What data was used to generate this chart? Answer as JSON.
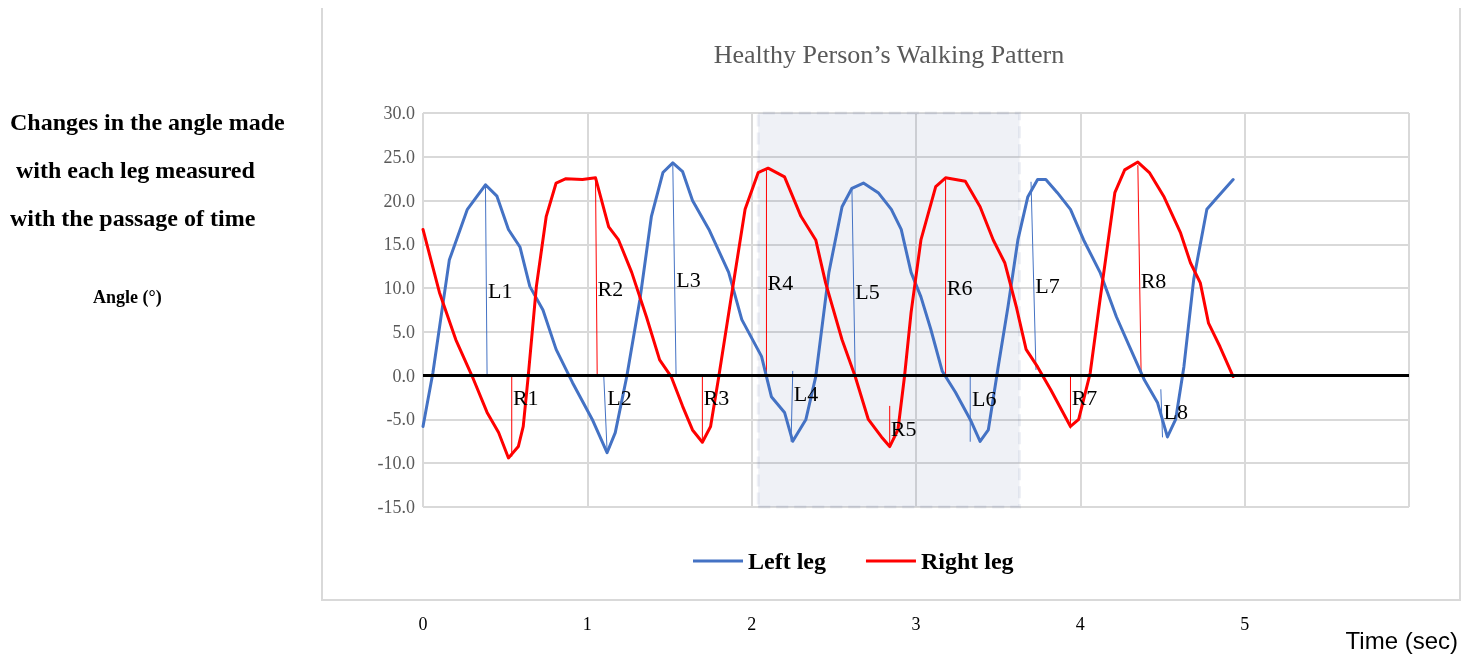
{
  "chart_data": {
    "type": "line",
    "title": "Healthy Person’s Walking Pattern",
    "xlabel": "Time (sec)",
    "xlim": [
      0,
      6
    ],
    "xticks": [
      0,
      1,
      2,
      3,
      4,
      5,
      {
        "value": 6,
        "label": null
      }
    ],
    "ylim": [
      -15,
      30
    ],
    "yticks": [
      {
        "value": -15,
        "label": "-15.0"
      },
      {
        "value": -10,
        "label": "-10.0"
      },
      {
        "value": -5,
        "label": "-5.0"
      },
      {
        "value": 0,
        "label": "0.0"
      },
      {
        "value": 5,
        "label": "5.0"
      },
      {
        "value": 10,
        "label": "10.0"
      },
      {
        "value": 15,
        "label": "15.0"
      },
      {
        "value": 20,
        "label": "20.0"
      },
      {
        "value": 25,
        "label": "25.0"
      },
      {
        "value": 30,
        "label": "30.0"
      }
    ],
    "grid": true,
    "legend": "bottom",
    "marker": "none",
    "line_style": "solid",
    "series": [
      {
        "name": "Left leg",
        "color": "#4472c4",
        "x": [
          0,
          0.06,
          0.16,
          0.27,
          0.38,
          0.45,
          0.52,
          0.59,
          0.65,
          0.73,
          0.81,
          0.91,
          1.03,
          1.12,
          1.17,
          1.24,
          1.32,
          1.39,
          1.46,
          1.52,
          1.58,
          1.64,
          1.74,
          1.86,
          1.94,
          2.06,
          2.12,
          2.2,
          2.25,
          2.33,
          2.39,
          2.47,
          2.55,
          2.61,
          2.68,
          2.77,
          2.85,
          2.91,
          2.97,
          3.03,
          3.09,
          3.16,
          3.24,
          3.33,
          3.39,
          3.44,
          3.5,
          3.56,
          3.62,
          3.68,
          3.74,
          3.79,
          3.86,
          3.94,
          4.02,
          4.12,
          4.22,
          4.3,
          4.39,
          4.47,
          4.53,
          4.58,
          4.63,
          4.69,
          4.77,
          4.83,
          4.93
        ],
        "values": [
          -5.8,
          0.3,
          13.2,
          19,
          21.8,
          20.5,
          16.7,
          14.7,
          10.2,
          7.5,
          3,
          -0.8,
          -5,
          -8.8,
          -6.5,
          -0.1,
          8.7,
          18.2,
          23.2,
          24.3,
          23.3,
          20,
          16.7,
          11.8,
          6.4,
          2.2,
          -2.4,
          -4.2,
          -7.5,
          -5,
          -0.1,
          11.8,
          19.3,
          21.4,
          22,
          20.9,
          19,
          16.7,
          11.8,
          9,
          5.3,
          0.5,
          -1.9,
          -5,
          -7.5,
          -6.2,
          1,
          7.9,
          15.5,
          20.4,
          22.4,
          22.4,
          20.9,
          19,
          15.5,
          11.8,
          6.7,
          3.3,
          -0.5,
          -3.1,
          -7,
          -5,
          1,
          11,
          19,
          20.3,
          22.4
        ]
      },
      {
        "name": "Right leg",
        "color": "#ff0000",
        "x": [
          0,
          0.1,
          0.2,
          0.3,
          0.39,
          0.46,
          0.52,
          0.58,
          0.61,
          0.64,
          0.69,
          0.75,
          0.81,
          0.87,
          0.97,
          1.05,
          1.13,
          1.19,
          1.27,
          1.36,
          1.44,
          1.51,
          1.58,
          1.64,
          1.7,
          1.75,
          1.8,
          1.88,
          1.96,
          2.04,
          2.1,
          2.2,
          2.3,
          2.39,
          2.45,
          2.55,
          2.63,
          2.71,
          2.79,
          2.84,
          2.89,
          2.93,
          2.97,
          3.03,
          3.12,
          3.18,
          3.3,
          3.39,
          3.47,
          3.54,
          3.61,
          3.67,
          3.74,
          3.82,
          3.94,
          3.99,
          4.06,
          4.12,
          4.21,
          4.27,
          4.35,
          4.42,
          4.51,
          4.61,
          4.67,
          4.73,
          4.78,
          4.85,
          4.93
        ],
        "values": [
          16.7,
          9.5,
          4.1,
          -0.1,
          -4.2,
          -6.5,
          -9.4,
          -8.1,
          -5.8,
          -0.1,
          10.2,
          18.2,
          22,
          22.5,
          22.4,
          22.6,
          17,
          15.5,
          11.8,
          6.7,
          1.8,
          -0.1,
          -3.5,
          -6.2,
          -7.6,
          -5.8,
          -0.1,
          9.5,
          19,
          23.2,
          23.7,
          22.7,
          18.2,
          15.5,
          10.6,
          4.1,
          -0.1,
          -5,
          -7,
          -8.1,
          -6.2,
          -0.1,
          7.2,
          15.5,
          21.6,
          22.6,
          22.2,
          19.3,
          15.5,
          12.9,
          7.9,
          3,
          1,
          -1.6,
          -5.8,
          -5,
          0.3,
          8.7,
          20.9,
          23.5,
          24.4,
          23.2,
          20.4,
          16.3,
          12.9,
          10.6,
          6,
          3.3,
          -0.1
        ]
      },
      {
        "name": "L1",
        "color": "#4472c4",
        "x": [
          0.38,
          0.39
        ],
        "values": [
          21.8,
          0
        ]
      },
      {
        "name": "R1",
        "color": "#ff0000",
        "x": [
          0.54,
          0.54
        ],
        "values": [
          0,
          -9.2
        ]
      },
      {
        "name": "R2",
        "color": "#ff0000",
        "x": [
          1.05,
          1.06
        ],
        "values": [
          22.3,
          0
        ]
      },
      {
        "name": "L2",
        "color": "#4472c4",
        "x": [
          1.1,
          1.12
        ],
        "values": [
          0,
          -8.5
        ]
      },
      {
        "name": "L3",
        "color": "#4472c4",
        "x": [
          1.52,
          1.54
        ],
        "values": [
          24.2,
          0
        ]
      },
      {
        "name": "R3",
        "color": "#ff0000",
        "x": [
          1.7,
          1.7
        ],
        "values": [
          0,
          -7.5
        ]
      },
      {
        "name": "R4",
        "color": "#ff0000",
        "x": [
          2.09,
          2.09
        ],
        "values": [
          23.5,
          0
        ]
      },
      {
        "name": "L4",
        "color": "#4472c4",
        "x": [
          2.25,
          2.24
        ],
        "values": [
          0.5,
          -7.5
        ]
      },
      {
        "name": "L5",
        "color": "#4472c4",
        "x": [
          2.61,
          2.63
        ],
        "values": [
          21.5,
          0
        ]
      },
      {
        "name": "R5",
        "color": "#ff0000",
        "x": [
          2.84,
          2.84
        ],
        "values": [
          -3.5,
          -8
        ]
      },
      {
        "name": "R6",
        "color": "#ff0000",
        "x": [
          3.18,
          3.18
        ],
        "values": [
          22.4,
          0
        ]
      },
      {
        "name": "L6",
        "color": "#4472c4",
        "x": [
          3.33,
          3.33
        ],
        "values": [
          -0.1,
          -7.5
        ]
      },
      {
        "name": "L7",
        "color": "#4472c4",
        "x": [
          3.7,
          3.73
        ],
        "values": [
          22.1,
          0.7
        ]
      },
      {
        "name": "R7",
        "color": "#ff0000",
        "x": [
          3.94,
          3.94
        ],
        "values": [
          0,
          -6
        ]
      },
      {
        "name": "R8",
        "color": "#ff0000",
        "x": [
          4.35,
          4.37
        ],
        "values": [
          24,
          0
        ]
      },
      {
        "name": "L8",
        "color": "#4472c4",
        "x": [
          4.49,
          4.5
        ],
        "values": [
          -1.6,
          -7
        ]
      }
    ],
    "ref_lines": [
      {
        "axis": "y",
        "value": 0,
        "color": "#000000"
      }
    ],
    "bands": [
      {
        "axis": "x",
        "from": 2.04,
        "to": 3.63,
        "color": "#2f528f"
      }
    ],
    "annotations": [
      "Changes in the angle made with each leg measured with the passage of time",
      "Angle (°)"
    ]
  }
}
